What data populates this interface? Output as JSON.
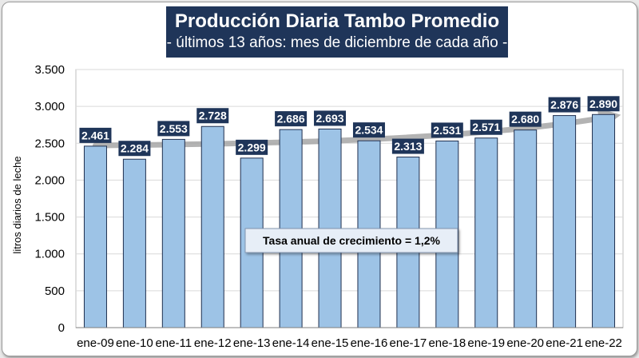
{
  "chart_data": {
    "type": "bar",
    "title": "Producción Diaria Tambo Promedio",
    "subtitle": "- últimos 13 años: mes de diciembre de cada año -",
    "xlabel": "",
    "ylabel": "litros diarios de leche",
    "categories": [
      "ene-09",
      "ene-10",
      "ene-11",
      "ene-12",
      "ene-13",
      "ene-14",
      "ene-15",
      "ene-16",
      "ene-17",
      "ene-18",
      "ene-19",
      "ene-20",
      "ene-21",
      "ene-22"
    ],
    "values": [
      2461,
      2284,
      2553,
      2728,
      2299,
      2686,
      2693,
      2534,
      2313,
      2531,
      2571,
      2680,
      2876,
      2890
    ],
    "data_labels": [
      "2.461",
      "2.284",
      "2.553",
      "2.728",
      "2.299",
      "2.686",
      "2.693",
      "2.534",
      "2.313",
      "2.531",
      "2.571",
      "2.680",
      "2.876",
      "2.890"
    ],
    "ylim": [
      0,
      3500
    ],
    "yticks": [
      0,
      500,
      1000,
      1500,
      2000,
      2500,
      3000,
      3500
    ],
    "ytick_labels": [
      "0",
      "500",
      "1.000",
      "1.500",
      "2.000",
      "2.500",
      "3.000",
      "3.500"
    ],
    "grid": true,
    "trend_arrow": true,
    "annotation": "Tasa anual de crecimiento = 1,2%",
    "colors": {
      "bar": "#9dc3e6",
      "bar_edge": "#1f2f4f",
      "label_bg": "#1f3559",
      "title_bg": "#1f3559",
      "grid": "#d9d9d9",
      "trend": "#a6a6a6"
    }
  }
}
